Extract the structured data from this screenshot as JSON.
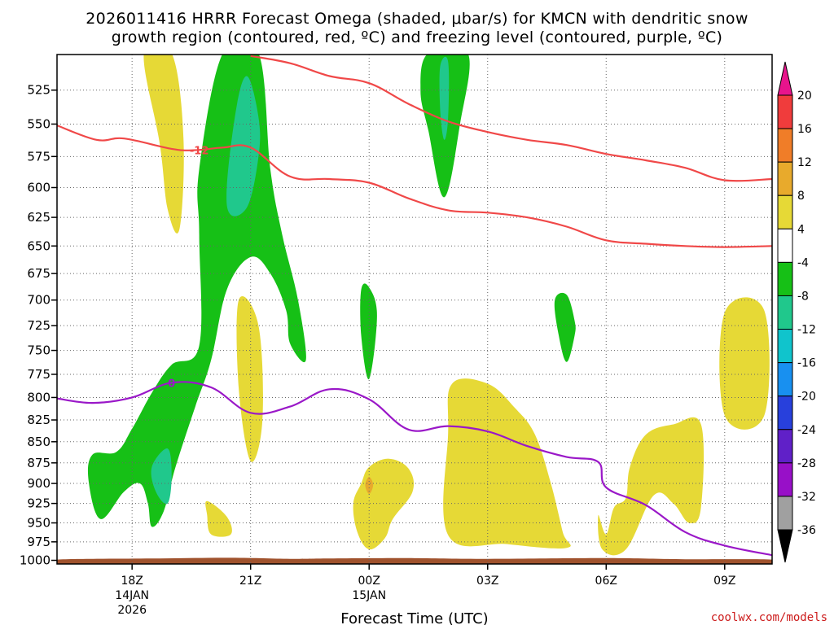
{
  "chart_data": {
    "type": "heatmap",
    "title_line1": "2026011416 HRRR Forecast Omega (shaded, μbar/s) for KMCN with dendritic snow",
    "title_line2": "growth region (contoured, red, ºC) and freezing level (contoured, purple, ºC)",
    "xlabel": "Forecast Time (UTC)",
    "credit": "coolwx.com/models",
    "x_range_hours": [
      -1.9,
      16.2
    ],
    "y_range_hpa": [
      1005,
      500
    ],
    "y_ticks": [
      525,
      550,
      575,
      600,
      625,
      650,
      675,
      700,
      725,
      750,
      775,
      800,
      825,
      850,
      875,
      900,
      925,
      950,
      975,
      1000
    ],
    "x_ticks": [
      {
        "hour": 0,
        "label": "18Z",
        "line2": "14JAN",
        "line3": "2026"
      },
      {
        "hour": 3,
        "label": "21Z",
        "line2": "",
        "line3": ""
      },
      {
        "hour": 6,
        "label": "00Z",
        "line2": "15JAN",
        "line3": ""
      },
      {
        "hour": 9,
        "label": "03Z",
        "line2": "",
        "line3": ""
      },
      {
        "hour": 12,
        "label": "06Z",
        "line2": "",
        "line3": ""
      },
      {
        "hour": 15,
        "label": "09Z",
        "line2": "",
        "line3": ""
      }
    ],
    "colorbar": {
      "labels": [
        "20",
        "16",
        "12",
        "8",
        "4",
        "-4",
        "-8",
        "-12",
        "-16",
        "-20",
        "-24",
        "-28",
        "-32",
        "-36"
      ],
      "colors": [
        "#f03c3c",
        "#f07d28",
        "#e8aa2c",
        "#e6d936",
        "#ffffff",
        "#16c016",
        "#20c88c",
        "#10c4cc",
        "#1890f0",
        "#2840dc",
        "#6020c8",
        "#9810c8",
        "#a0a0a0"
      ],
      "top_arrow_color": "#e8148c",
      "bottom_arrow_color": "#000000"
    },
    "contour_labels": {
      "dgz": "-12",
      "freezing": "0"
    },
    "series": [
      {
        "name": "dendritic-growth-upper",
        "color": "#f04848",
        "points": [
          [
            -1.9,
            551
          ],
          [
            -0.9,
            562
          ],
          [
            -0.2,
            561
          ],
          [
            1.0,
            569
          ],
          [
            1.6,
            570
          ],
          [
            2.3,
            568
          ],
          [
            3.0,
            568
          ],
          [
            4.0,
            591
          ],
          [
            5.0,
            593
          ],
          [
            6.0,
            596
          ],
          [
            7.0,
            609
          ],
          [
            8.0,
            619
          ],
          [
            9.0,
            621
          ],
          [
            10.0,
            625
          ],
          [
            11.0,
            633
          ],
          [
            12.0,
            645
          ],
          [
            13.0,
            648
          ],
          [
            14.0,
            650
          ],
          [
            15.0,
            651
          ],
          [
            16.2,
            650
          ]
        ]
      },
      {
        "name": "dendritic-growth-lower",
        "color": "#f04848",
        "points": [
          [
            3.0,
            501
          ],
          [
            4.0,
            506
          ],
          [
            5.0,
            515
          ],
          [
            6.0,
            520
          ],
          [
            7.0,
            535
          ],
          [
            8.0,
            548
          ],
          [
            9.0,
            556
          ],
          [
            10.0,
            562
          ],
          [
            11.0,
            566
          ],
          [
            12.0,
            573
          ],
          [
            13.0,
            578
          ],
          [
            14.0,
            584
          ],
          [
            15.0,
            594
          ],
          [
            16.2,
            593
          ]
        ]
      },
      {
        "name": "freezing-level",
        "color": "#9a18c8",
        "points": [
          [
            -1.9,
            801
          ],
          [
            -1.0,
            806
          ],
          [
            0.0,
            800
          ],
          [
            1.0,
            784
          ],
          [
            2.0,
            789
          ],
          [
            3.0,
            817
          ],
          [
            4.0,
            810
          ],
          [
            5.0,
            791
          ],
          [
            6.0,
            802
          ],
          [
            7.0,
            836
          ],
          [
            8.0,
            832
          ],
          [
            9.0,
            838
          ],
          [
            10.0,
            855
          ],
          [
            11.0,
            868
          ],
          [
            11.8,
            874
          ],
          [
            12.0,
            905
          ],
          [
            13.0,
            927
          ],
          [
            14.0,
            962
          ],
          [
            15.0,
            980
          ],
          [
            16.2,
            993
          ]
        ]
      }
    ],
    "omega_regions": [
      {
        "value": 4,
        "color": "#e6d936",
        "points": [
          [
            0.3,
            499
          ],
          [
            1.0,
            499
          ],
          [
            1.3,
            560
          ],
          [
            1.2,
            635
          ],
          [
            0.9,
            618
          ],
          [
            0.7,
            565
          ]
        ]
      },
      {
        "value": 4,
        "color": "#e6d936",
        "points": [
          [
            2.7,
            700
          ],
          [
            3.2,
            725
          ],
          [
            3.3,
            825
          ],
          [
            3.0,
            873
          ],
          [
            2.7,
            790
          ]
        ]
      },
      {
        "value": 4,
        "color": "#e6d936",
        "points": [
          [
            5.8,
            900
          ],
          [
            6.0,
            880
          ],
          [
            6.5,
            870
          ],
          [
            7.0,
            882
          ],
          [
            7.1,
            910
          ],
          [
            6.6,
            945
          ],
          [
            6.4,
            970
          ],
          [
            6.0,
            985
          ],
          [
            5.7,
            962
          ],
          [
            5.6,
            925
          ]
        ]
      },
      {
        "value": 4,
        "color": "#e6d936",
        "points": [
          [
            9.0,
            785
          ],
          [
            9.7,
            812
          ],
          [
            10.2,
            842
          ],
          [
            10.6,
            900
          ],
          [
            10.9,
            962
          ],
          [
            11.0,
            983
          ],
          [
            9.5,
            978
          ],
          [
            8.0,
            966
          ],
          [
            8.0,
            840
          ],
          [
            8.1,
            785
          ]
        ]
      },
      {
        "value": 4,
        "color": "#e6d936",
        "points": [
          [
            12.0,
            965
          ],
          [
            12.2,
            930
          ],
          [
            12.5,
            918
          ],
          [
            12.6,
            880
          ],
          [
            13.0,
            842
          ],
          [
            13.7,
            830
          ],
          [
            14.4,
            830
          ],
          [
            14.4,
            930
          ],
          [
            14.1,
            950
          ],
          [
            13.7,
            925
          ],
          [
            13.2,
            915
          ],
          [
            12.5,
            985
          ],
          [
            11.9,
            985
          ],
          [
            11.8,
            940
          ]
        ]
      },
      {
        "value": 4,
        "color": "#e6d936",
        "points": [
          [
            15.0,
            712
          ],
          [
            16.0,
            710
          ],
          [
            16.0,
            820
          ],
          [
            15.0,
            820
          ]
        ]
      },
      {
        "value": 4,
        "color": "#e6d936",
        "points": [
          [
            1.9,
            922
          ],
          [
            2.4,
            942
          ],
          [
            2.5,
            965
          ],
          [
            2.0,
            965
          ],
          [
            1.9,
            940
          ]
        ]
      },
      {
        "value": -4,
        "color": "#16c016",
        "points": [
          [
            -1.1,
            897
          ],
          [
            -1.0,
            865
          ],
          [
            -0.4,
            862
          ],
          [
            0.0,
            835
          ],
          [
            0.5,
            795
          ],
          [
            1.0,
            765
          ],
          [
            1.7,
            745
          ],
          [
            1.7,
            640
          ],
          [
            1.7,
            585
          ],
          [
            2.3,
            499
          ],
          [
            3.2,
            499
          ],
          [
            3.5,
            585
          ],
          [
            3.8,
            640
          ],
          [
            4.2,
            700
          ],
          [
            4.4,
            760
          ],
          [
            4.0,
            743
          ],
          [
            3.9,
            710
          ],
          [
            3.5,
            675
          ],
          [
            3.0,
            660
          ],
          [
            2.4,
            690
          ],
          [
            2.0,
            760
          ],
          [
            1.6,
            810
          ],
          [
            1.1,
            880
          ],
          [
            0.8,
            935
          ],
          [
            0.5,
            955
          ],
          [
            0.4,
            925
          ],
          [
            0.2,
            900
          ],
          [
            -0.2,
            910
          ],
          [
            -0.8,
            945
          ]
        ]
      },
      {
        "value": -4,
        "color": "#16c016",
        "points": [
          [
            7.5,
            499
          ],
          [
            8.5,
            499
          ],
          [
            8.3,
            550
          ],
          [
            7.9,
            608
          ],
          [
            7.5,
            555
          ],
          [
            7.3,
            525
          ]
        ]
      },
      {
        "value": -4,
        "color": "#16c016",
        "points": [
          [
            5.8,
            690
          ],
          [
            6.0,
            688
          ],
          [
            6.2,
            715
          ],
          [
            6.0,
            780
          ],
          [
            5.8,
            735
          ]
        ]
      },
      {
        "value": -4,
        "color": "#16c016",
        "points": [
          [
            10.7,
            700
          ],
          [
            11.0,
            695
          ],
          [
            11.2,
            720
          ],
          [
            11.2,
            735
          ],
          [
            11.0,
            762
          ],
          [
            10.8,
            735
          ]
        ]
      },
      {
        "value": -8,
        "color": "#20c88c",
        "points": [
          [
            2.4,
            615
          ],
          [
            2.6,
            545
          ],
          [
            2.9,
            515
          ],
          [
            3.2,
            545
          ],
          [
            3.2,
            575
          ],
          [
            2.9,
            617
          ]
        ]
      },
      {
        "value": -8,
        "color": "#20c88c",
        "points": [
          [
            0.5,
            880
          ],
          [
            0.9,
            858
          ],
          [
            1.0,
            890
          ],
          [
            0.9,
            925
          ],
          [
            0.6,
            910
          ]
        ]
      },
      {
        "value": -8,
        "color": "#20c88c",
        "points": [
          [
            7.8,
            508
          ],
          [
            8.0,
            505
          ],
          [
            8.0,
            545
          ],
          [
            7.9,
            562
          ],
          [
            7.8,
            540
          ]
        ]
      },
      {
        "value": 12,
        "color": "#e8aa2c",
        "points": [
          [
            5.9,
            902
          ],
          [
            6.0,
            892
          ],
          [
            6.1,
            902
          ],
          [
            6.0,
            913
          ]
        ]
      },
      {
        "value": 0,
        "color": "#a0522d",
        "points": [
          [
            -1.9,
            1005
          ],
          [
            -1.9,
            999
          ],
          [
            0.5,
            997.5
          ],
          [
            2.5,
            996.5
          ],
          [
            4.0,
            998
          ],
          [
            5.0,
            997.5
          ],
          [
            7.0,
            997
          ],
          [
            9.0,
            998
          ],
          [
            12.0,
            997
          ],
          [
            14.0,
            998.5
          ],
          [
            16.2,
            999
          ],
          [
            16.2,
            1005
          ]
        ]
      }
    ]
  }
}
